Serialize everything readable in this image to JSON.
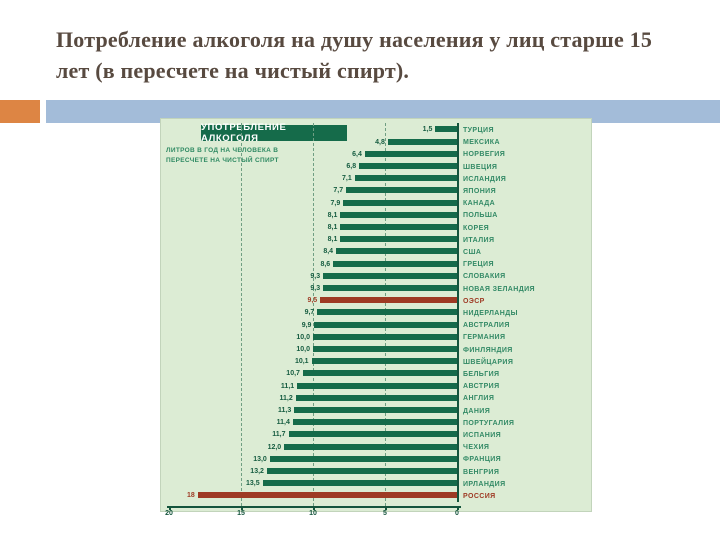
{
  "slide": {
    "title": "Потребление алкоголя на душу населения у лиц старше 15 лет (в пересчете на чистый спирт)."
  },
  "decoration": {
    "orange_block_color": "#dd8544",
    "blue_bar_color": "#a3bcd9"
  },
  "chart_data": {
    "type": "bar",
    "orientation": "horizontal",
    "title": "УПОТРЕБЛЕНИЕ АЛКОГОЛЯ",
    "subtitle": "ЛИТРОВ В ГОД НА ЧЕЛОВЕКА В ПЕРЕСЧЕТЕ НА ЧИСТЫЙ СПИРТ",
    "categories": [
      "ТУРЦИЯ",
      "МЕКСИКА",
      "НОРВЕГИЯ",
      "ШВЕЦИЯ",
      "ИСЛАНДИЯ",
      "ЯПОНИЯ",
      "КАНАДА",
      "ПОЛЬША",
      "КОРЕЯ",
      "ИТАЛИЯ",
      "США",
      "ГРЕЦИЯ",
      "СЛОВАКИЯ",
      "НОВАЯ ЗЕЛАНДИЯ",
      "ОЭСР",
      "НИДЕРЛАНДЫ",
      "АВСТРАЛИЯ",
      "ГЕРМАНИЯ",
      "ФИНЛЯНДИЯ",
      "ШВЕЙЦАРИЯ",
      "БЕЛЬГИЯ",
      "АВСТРИЯ",
      "АНГЛИЯ",
      "ДАНИЯ",
      "ПОРТУГАЛИЯ",
      "ИСПАНИЯ",
      "ЧЕХИЯ",
      "ФРАНЦИЯ",
      "ВЕНГРИЯ",
      "ИРЛАНДИЯ",
      "РОССИЯ"
    ],
    "values": [
      1.5,
      4.8,
      6.4,
      6.8,
      7.1,
      7.7,
      7.9,
      8.1,
      8.1,
      8.1,
      8.4,
      8.6,
      9.3,
      9.3,
      9.5,
      9.7,
      9.9,
      10.0,
      10.0,
      10.1,
      10.7,
      11.1,
      11.2,
      11.3,
      11.4,
      11.7,
      12.0,
      13.0,
      13.2,
      13.5,
      18
    ],
    "value_labels": [
      "1,5",
      "4,8",
      "6,4",
      "6,8",
      "7,1",
      "7,7",
      "7,9",
      "8,1",
      "8,1",
      "8,1",
      "8,4",
      "8,6",
      "9,3",
      "9,3",
      "9,5",
      "9,7",
      "9,9",
      "10,0",
      "10,0",
      "10,1",
      "10,7",
      "11,1",
      "11,2",
      "11,3",
      "11,4",
      "11,7",
      "12,0",
      "13,0",
      "13,2",
      "13,5",
      "18"
    ],
    "highlighted": [
      "ОЭСР",
      "РОССИЯ"
    ],
    "highlight_indices": [
      14,
      30
    ],
    "xlim": [
      0,
      20
    ],
    "axis_reversed": true,
    "axis_ticks": [
      20,
      15,
      10,
      5,
      0
    ],
    "axis_tick_labels": [
      "20",
      "15",
      "10",
      "5",
      "0"
    ],
    "gridlines_at": [
      5,
      10,
      15
    ],
    "legend_position": "none",
    "colors": {
      "bar": "#156b4a",
      "highlight": "#9e3a24",
      "panel_bg": "#dcecd4",
      "header_bg": "#156b4a",
      "subtitle_text": "#2f8a63",
      "country_text": "#338a66",
      "value_text": "#155c40",
      "axis": "#14543c"
    }
  }
}
